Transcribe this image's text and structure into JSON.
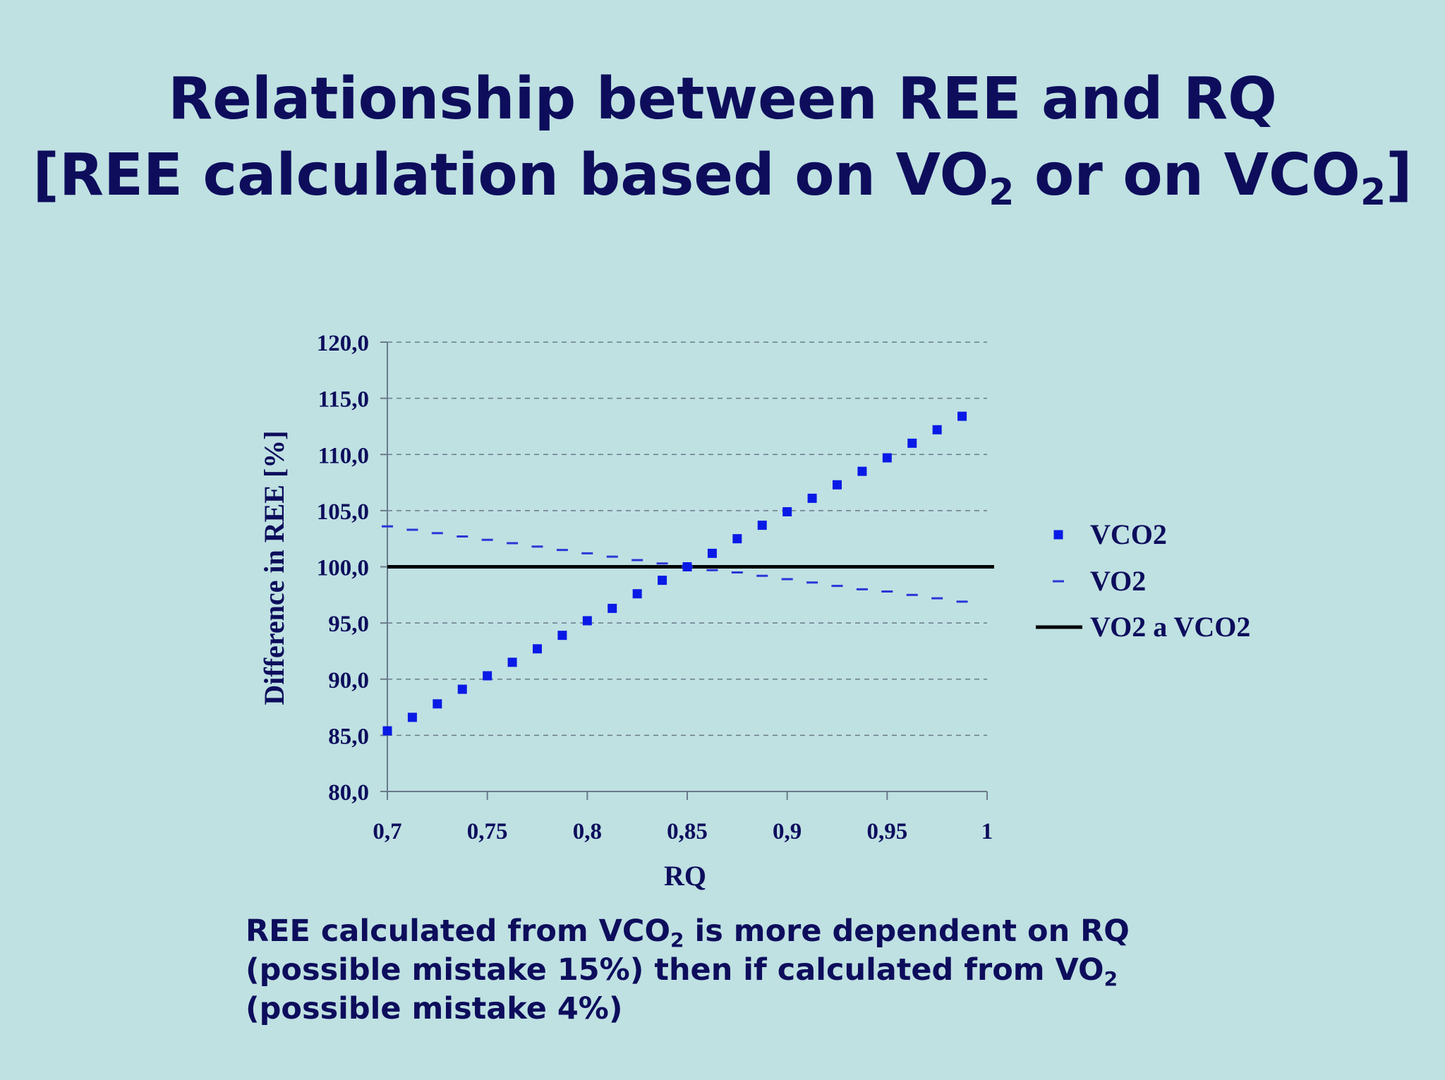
{
  "slide": {
    "title_line1": "Relationship between REE and RQ",
    "title_line2": {
      "p1": "[REE calculation based on VO",
      "sub1": "2",
      "p2": " or on VCO",
      "sub2": "2",
      "p3": "]"
    },
    "note": {
      "p1": "REE calculated from VCO",
      "sub1": "2",
      "p2": " is more dependent on RQ (possible mistake 15%) then if calculated from VO",
      "sub2": "2",
      "p3": " (possible mistake 4%)"
    }
  },
  "colors": {
    "background": "#bfe1e2",
    "text": "#0d0d5c",
    "vco2": "#0a1ae6",
    "vo2": "#2a36d8",
    "reference": "#000000",
    "grid": "#6a7a8a"
  },
  "chart_data": {
    "type": "scatter",
    "title": "",
    "xlabel": "RQ",
    "ylabel": "Difference in REE [%]",
    "xlim": [
      0.7,
      1.0
    ],
    "ylim": [
      80,
      120
    ],
    "x_ticks": [
      "0,7",
      "0,75",
      "0,8",
      "0,85",
      "0,9",
      "0,95",
      "1"
    ],
    "y_ticks": [
      "80,0",
      "85,0",
      "90,0",
      "95,0",
      "100,0",
      "105,0",
      "110,0",
      "115,0",
      "120,0"
    ],
    "grid": "horizontal-dashed",
    "legend_position": "right",
    "x": [
      0.7,
      0.7125,
      0.725,
      0.7375,
      0.75,
      0.7625,
      0.775,
      0.7875,
      0.8,
      0.8125,
      0.825,
      0.8375,
      0.85,
      0.8625,
      0.875,
      0.8875,
      0.9,
      0.9125,
      0.925,
      0.9375,
      0.95,
      0.9625,
      0.975,
      0.9875
    ],
    "series": [
      {
        "name": "VCO2",
        "marker": "square",
        "values": [
          85.4,
          86.6,
          87.8,
          89.1,
          90.3,
          91.5,
          92.7,
          93.9,
          95.2,
          96.3,
          97.6,
          98.8,
          100.0,
          101.2,
          102.5,
          103.7,
          104.9,
          106.1,
          107.3,
          108.5,
          109.7,
          111.0,
          112.2,
          113.4
        ]
      },
      {
        "name": "VO2",
        "marker": "dash",
        "values": [
          103.6,
          103.3,
          103.0,
          102.7,
          102.4,
          102.1,
          101.8,
          101.5,
          101.2,
          100.9,
          100.6,
          100.3,
          100.0,
          99.7,
          99.5,
          99.2,
          98.9,
          98.6,
          98.3,
          98.0,
          97.8,
          97.5,
          97.2,
          96.9
        ]
      },
      {
        "name": "VO2 a VCO2",
        "marker": "line",
        "values": [
          100.0,
          100.0
        ]
      }
    ]
  }
}
